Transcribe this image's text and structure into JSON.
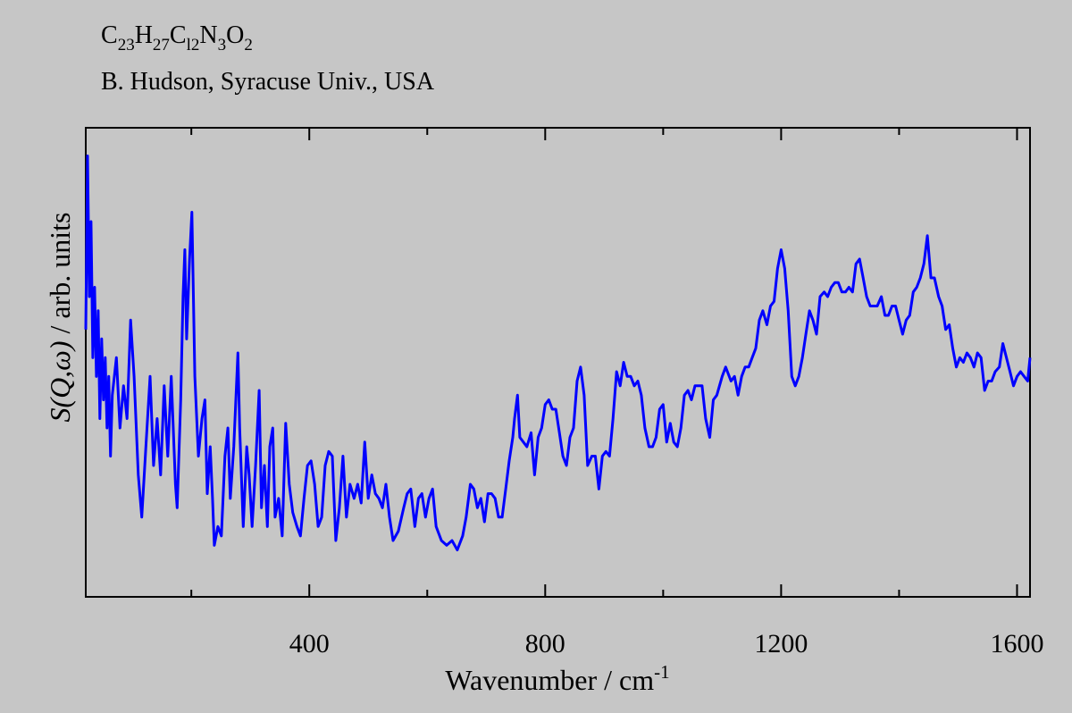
{
  "chart_data": {
    "type": "line",
    "formula_parts": [
      "C",
      "23",
      "H",
      "27",
      "C",
      "l2",
      "N",
      "3",
      "O",
      "2"
    ],
    "subtitle": "B. Hudson, Syracuse Univ., USA",
    "xlabel": "Wavenumber / cm",
    "xlabel_sup": "-1",
    "ylabel_italic": "S(Q,ω)",
    "ylabel": " / arb. units",
    "xlim": [
      21,
      1622
    ],
    "ylim": [
      0,
      100
    ],
    "xticks": [
      400,
      800,
      1200,
      1600
    ],
    "xminor_ticks": [
      200,
      600,
      1000,
      1400
    ],
    "grid": false,
    "series": [
      {
        "color": "#0000ff",
        "x": [
          21,
          24,
          27,
          30,
          33,
          36,
          39,
          42,
          45,
          48,
          51,
          54,
          57,
          60,
          63,
          66,
          73,
          79,
          85,
          91,
          97,
          103,
          110,
          116,
          123,
          130,
          136,
          142,
          148,
          154,
          160,
          166,
          173,
          176,
          182,
          186,
          189,
          192,
          197,
          201,
          206,
          212,
          218,
          223,
          227,
          232,
          236,
          239,
          245,
          251,
          257,
          262,
          266,
          272,
          279,
          282,
          288,
          294,
          298,
          303,
          309,
          315,
          319,
          324,
          329,
          333,
          338,
          342,
          348,
          354,
          360,
          366,
          372,
          379,
          385,
          391,
          397,
          403,
          409,
          415,
          421,
          427,
          433,
          439,
          445,
          451,
          457,
          463,
          469,
          476,
          482,
          488,
          494,
          500,
          506,
          512,
          518,
          524,
          530,
          536,
          542,
          551,
          560,
          566,
          572,
          579,
          585,
          591,
          597,
          603,
          609,
          615,
          624,
          633,
          642,
          651,
          660,
          666,
          673,
          679,
          685,
          691,
          697,
          703,
          709,
          715,
          721,
          727,
          733,
          739,
          745,
          748,
          753,
          757,
          763,
          769,
          776,
          782,
          788,
          794,
          800,
          806,
          812,
          818,
          824,
          830,
          836,
          842,
          848,
          854,
          860,
          866,
          872,
          879,
          885,
          891,
          897,
          903,
          909,
          915,
          921,
          927,
          933,
          939,
          945,
          951,
          957,
          963,
          969,
          976,
          982,
          988,
          994,
          1000,
          1006,
          1012,
          1018,
          1024,
          1030,
          1036,
          1042,
          1048,
          1054,
          1060,
          1066,
          1072,
          1079,
          1085,
          1091,
          1100,
          1106,
          1115,
          1121,
          1127,
          1133,
          1139,
          1145,
          1151,
          1157,
          1163,
          1169,
          1176,
          1182,
          1188,
          1194,
          1200,
          1206,
          1212,
          1218,
          1224,
          1230,
          1236,
          1242,
          1248,
          1254,
          1260,
          1266,
          1273,
          1279,
          1285,
          1291,
          1297,
          1303,
          1309,
          1315,
          1321,
          1327,
          1333,
          1339,
          1345,
          1351,
          1357,
          1363,
          1370,
          1376,
          1382,
          1388,
          1394,
          1400,
          1406,
          1412,
          1418,
          1424,
          1430,
          1436,
          1442,
          1448,
          1454,
          1460,
          1467,
          1473,
          1479,
          1485,
          1491,
          1497,
          1503,
          1509,
          1515,
          1521,
          1527,
          1533,
          1539,
          1545,
          1551,
          1557,
          1563,
          1570,
          1576,
          1582,
          1588,
          1594,
          1600,
          1606,
          1612,
          1618,
          1622
        ],
        "values": [
          57,
          94,
          64,
          80,
          51,
          66,
          47,
          61,
          38,
          55,
          42,
          51,
          36,
          47,
          30,
          43,
          51,
          36,
          45,
          38,
          59,
          47,
          26,
          17,
          32,
          47,
          28,
          38,
          26,
          45,
          30,
          47,
          24,
          19,
          42,
          64,
          74,
          55,
          72,
          82,
          47,
          30,
          38,
          42,
          22,
          32,
          21,
          11,
          15,
          13,
          30,
          36,
          21,
          32,
          52,
          36,
          15,
          32,
          26,
          15,
          28,
          44,
          19,
          28,
          15,
          32,
          36,
          17,
          21,
          13,
          37,
          24,
          18,
          15,
          13,
          21,
          28,
          29,
          24,
          15,
          17,
          28,
          31,
          30,
          12,
          19,
          30,
          17,
          24,
          21,
          24,
          20,
          33,
          21,
          26,
          22,
          21,
          19,
          24,
          17,
          12,
          14,
          19,
          22,
          23,
          15,
          21,
          22,
          17,
          21,
          23,
          15,
          12,
          11,
          12,
          10,
          13,
          17,
          24,
          23,
          19,
          21,
          16,
          22,
          22,
          21,
          17,
          17,
          23,
          29,
          34,
          38,
          43,
          34,
          33,
          32,
          35,
          26,
          34,
          36,
          41,
          42,
          40,
          40,
          35,
          30,
          28,
          34,
          36,
          46,
          49,
          43,
          28,
          30,
          30,
          23,
          30,
          31,
          30,
          38,
          48,
          45,
          50,
          47,
          47,
          45,
          46,
          43,
          36,
          32,
          32,
          34,
          40,
          41,
          33,
          37,
          33,
          32,
          36,
          43,
          44,
          42,
          45,
          45,
          45,
          38,
          34,
          42,
          43,
          47,
          49,
          46,
          47,
          43,
          47,
          49,
          49,
          51,
          53,
          59,
          61,
          58,
          62,
          63,
          70,
          74,
          70,
          61,
          47,
          45,
          47,
          51,
          56,
          61,
          59,
          56,
          64,
          65,
          64,
          66,
          67,
          67,
          65,
          65,
          66,
          65,
          71,
          72,
          68,
          64,
          62,
          62,
          62,
          64,
          60,
          60,
          62,
          62,
          59,
          56,
          59,
          60,
          65,
          66,
          68,
          71,
          77,
          68,
          68,
          64,
          62,
          57,
          58,
          53,
          49,
          51,
          50,
          52,
          51,
          49,
          52,
          51,
          44,
          46,
          46,
          48,
          49,
          54,
          51,
          48,
          45,
          47,
          48,
          47,
          46,
          51
        ]
      }
    ]
  }
}
